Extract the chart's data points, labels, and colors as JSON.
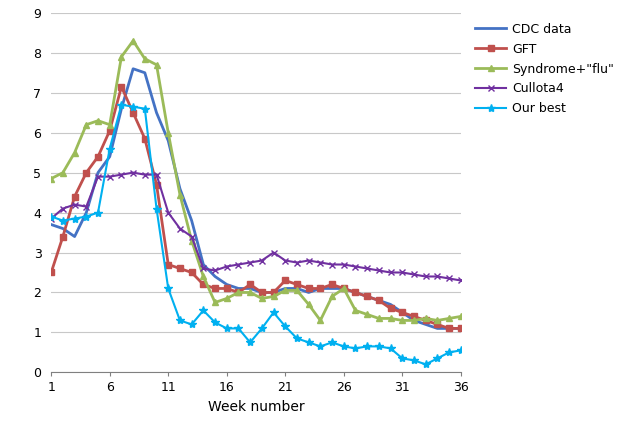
{
  "title": "",
  "xlabel": "Week number",
  "ylabel": "",
  "xlim": [
    1,
    36
  ],
  "ylim": [
    0,
    9
  ],
  "yticks": [
    0,
    1,
    2,
    3,
    4,
    5,
    6,
    7,
    8,
    9
  ],
  "xticks": [
    1,
    6,
    11,
    16,
    21,
    26,
    31,
    36
  ],
  "background_color": "#ffffff",
  "series": {
    "CDC data": {
      "color": "#4472C4",
      "linewidth": 2.0,
      "marker": null,
      "markersize": 4,
      "label": "CDC data",
      "values": [
        3.7,
        3.6,
        3.4,
        4.0,
        5.0,
        5.4,
        6.6,
        7.6,
        7.5,
        6.5,
        5.8,
        4.6,
        3.8,
        2.7,
        2.4,
        2.2,
        2.1,
        2.1,
        2.0,
        2.0,
        2.1,
        2.1,
        2.0,
        2.1,
        2.1,
        2.1,
        2.0,
        1.9,
        1.8,
        1.7,
        1.5,
        1.3,
        1.2,
        1.1,
        1.1,
        1.1
      ]
    },
    "GFT": {
      "color": "#C0504D",
      "linewidth": 2.0,
      "marker": "s",
      "markersize": 4,
      "label": "GFT",
      "values": [
        2.5,
        3.4,
        4.4,
        5.0,
        5.4,
        6.05,
        7.15,
        6.5,
        5.85,
        4.7,
        2.7,
        2.6,
        2.5,
        2.2,
        2.1,
        2.1,
        2.0,
        2.2,
        2.0,
        2.0,
        2.3,
        2.2,
        2.1,
        2.1,
        2.2,
        2.1,
        2.0,
        1.9,
        1.8,
        1.6,
        1.5,
        1.4,
        1.3,
        1.2,
        1.1,
        1.1
      ]
    },
    "Syndrome+flu": {
      "color": "#9BBB59",
      "linewidth": 2.0,
      "marker": "^",
      "markersize": 4,
      "label": "Syndrome+\"flu\"",
      "values": [
        4.85,
        5.0,
        5.5,
        6.2,
        6.3,
        6.2,
        7.9,
        8.3,
        7.85,
        7.7,
        6.0,
        4.45,
        3.3,
        2.4,
        1.75,
        1.85,
        2.0,
        2.0,
        1.85,
        1.9,
        2.05,
        2.05,
        1.7,
        1.3,
        1.9,
        2.1,
        1.55,
        1.45,
        1.35,
        1.35,
        1.3,
        1.3,
        1.35,
        1.3,
        1.35,
        1.4
      ]
    },
    "Cullota4": {
      "color": "#7030A0",
      "linewidth": 1.5,
      "marker": "x",
      "markersize": 5,
      "label": "Cullota4",
      "values": [
        3.85,
        4.1,
        4.2,
        4.15,
        4.9,
        4.9,
        4.95,
        5.0,
        4.95,
        4.95,
        4.0,
        3.6,
        3.4,
        2.6,
        2.55,
        2.65,
        2.7,
        2.75,
        2.8,
        3.0,
        2.8,
        2.75,
        2.8,
        2.75,
        2.7,
        2.7,
        2.65,
        2.6,
        2.55,
        2.5,
        2.5,
        2.45,
        2.4,
        2.4,
        2.35,
        2.3
      ]
    },
    "Our best": {
      "color": "#00B0F0",
      "linewidth": 1.5,
      "marker": "*",
      "markersize": 6,
      "label": "Our best",
      "values": [
        3.9,
        3.8,
        3.85,
        3.9,
        4.0,
        5.6,
        6.7,
        6.65,
        6.6,
        4.1,
        2.1,
        1.3,
        1.2,
        1.55,
        1.25,
        1.1,
        1.1,
        0.75,
        1.1,
        1.5,
        1.15,
        0.85,
        0.75,
        0.65,
        0.75,
        0.65,
        0.6,
        0.65,
        0.65,
        0.6,
        0.35,
        0.3,
        0.2,
        0.35,
        0.5,
        0.55
      ]
    }
  },
  "series_order": [
    "CDC data",
    "GFT",
    "Syndrome+flu",
    "Cullota4",
    "Our best"
  ]
}
